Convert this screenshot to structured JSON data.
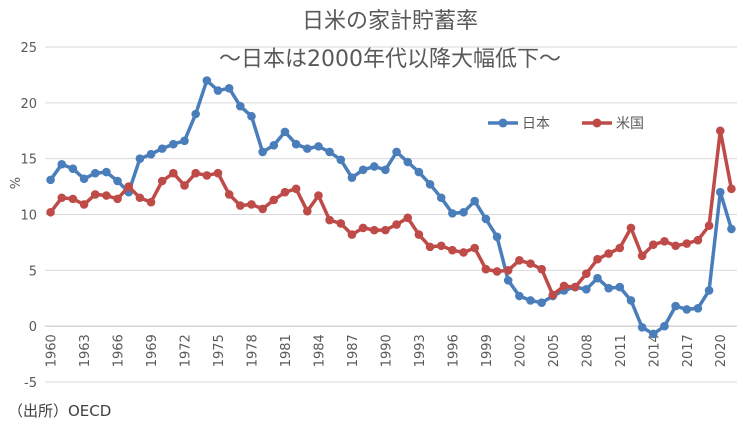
{
  "chart_data": {
    "type": "line",
    "title": "日米の家計貯蓄率",
    "subtitle": "～日本は2000年代以降大幅低下～",
    "xlabel": "",
    "ylabel": "%",
    "ylim": [
      -5,
      25
    ],
    "yticks": [
      -5,
      0,
      5,
      10,
      15,
      20,
      25
    ],
    "x": [
      1960,
      1961,
      1962,
      1963,
      1964,
      1965,
      1966,
      1967,
      1968,
      1969,
      1970,
      1971,
      1972,
      1973,
      1974,
      1975,
      1976,
      1977,
      1978,
      1979,
      1980,
      1981,
      1982,
      1983,
      1984,
      1985,
      1986,
      1987,
      1988,
      1989,
      1990,
      1991,
      1992,
      1993,
      1994,
      1995,
      1996,
      1997,
      1998,
      1999,
      2000,
      2001,
      2002,
      2003,
      2004,
      2005,
      2006,
      2007,
      2008,
      2009,
      2010,
      2011,
      2012,
      2013,
      2014,
      2015,
      2016,
      2017,
      2018,
      2019,
      2020,
      2021
    ],
    "xtick_labels": [
      "1960",
      "1963",
      "1966",
      "1969",
      "1972",
      "1975",
      "1978",
      "1981",
      "1984",
      "1987",
      "1990",
      "1993",
      "1996",
      "1999",
      "2002",
      "2005",
      "2008",
      "2011",
      "2014",
      "2017",
      "2020"
    ],
    "grid": true,
    "legend_position": "top-right",
    "series": [
      {
        "name": "日本",
        "color": "#4a7ebb",
        "values": [
          13.1,
          14.5,
          14.1,
          13.2,
          13.7,
          13.8,
          13.0,
          12.0,
          15.0,
          15.4,
          15.9,
          16.3,
          16.6,
          19.0,
          22.0,
          21.1,
          21.3,
          19.7,
          18.8,
          15.6,
          16.2,
          17.4,
          16.3,
          15.9,
          16.1,
          15.6,
          14.9,
          13.3,
          14.0,
          14.3,
          14.0,
          15.6,
          14.7,
          13.8,
          12.7,
          11.5,
          10.1,
          10.2,
          11.2,
          9.6,
          8.0,
          4.1,
          2.7,
          2.3,
          2.1,
          2.7,
          3.2,
          3.5,
          3.3,
          4.3,
          3.4,
          3.5,
          2.3,
          -0.1,
          -0.7,
          0.0,
          1.8,
          1.5,
          1.6,
          3.2,
          12.0,
          8.7
        ]
      },
      {
        "name": "米国",
        "color": "#be4b48",
        "values": [
          10.2,
          11.5,
          11.4,
          10.9,
          11.8,
          11.7,
          11.4,
          12.5,
          11.5,
          11.1,
          13.0,
          13.7,
          12.6,
          13.7,
          13.5,
          13.7,
          11.8,
          10.8,
          10.9,
          10.5,
          11.3,
          12.0,
          12.3,
          10.3,
          11.7,
          9.5,
          9.2,
          8.2,
          8.8,
          8.6,
          8.6,
          9.1,
          9.7,
          8.2,
          7.1,
          7.2,
          6.8,
          6.6,
          7.0,
          5.1,
          4.9,
          5.0,
          5.9,
          5.6,
          5.1,
          2.8,
          3.6,
          3.5,
          4.7,
          6.0,
          6.5,
          7.0,
          8.8,
          6.3,
          7.3,
          7.6,
          7.2,
          7.4,
          7.7,
          9.0,
          17.5,
          12.3
        ]
      }
    ]
  },
  "source": "（出所）OECD"
}
